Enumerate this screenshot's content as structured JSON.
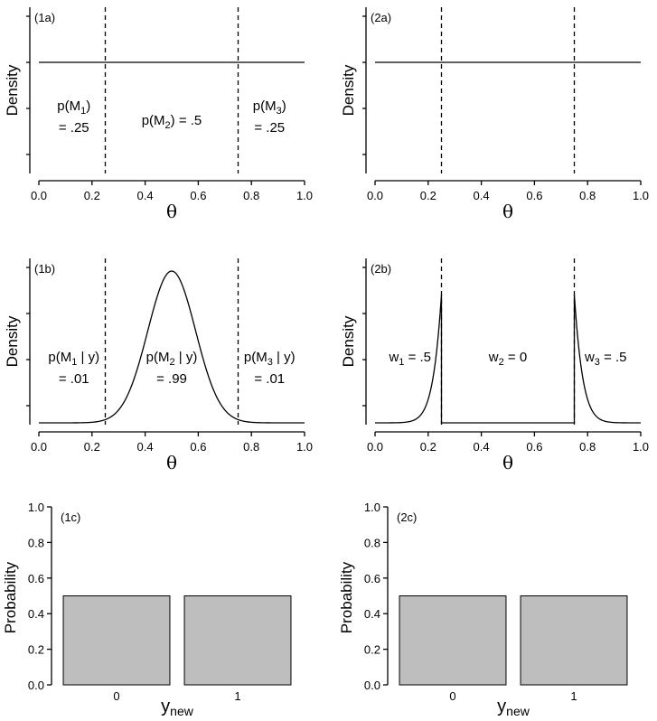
{
  "theta_label": "θ",
  "density_label": "Density",
  "probability_label": "Probability",
  "ynew_label": "y",
  "ynew_sub": "new",
  "theta_ticks": [
    "0.0",
    "0.2",
    "0.4",
    "0.6",
    "0.8",
    "1.0"
  ],
  "prob_ticks": [
    "0.0",
    "0.2",
    "0.4",
    "0.6",
    "0.8",
    "1.0"
  ],
  "chart_data": [
    {
      "id": "1a",
      "label": "(1a)",
      "type": "line",
      "xlim": [
        0,
        1
      ],
      "boundaries": [
        0.25,
        0.75
      ],
      "curve": "uniform",
      "annotations": [
        {
          "pos": "left",
          "line1": "p(M",
          "sub": "1",
          "line1b": ")",
          "line2": "= .25"
        },
        {
          "pos": "middle",
          "line1": "p(M",
          "sub": "2",
          "line1b": ")  = .5",
          "line2": ""
        },
        {
          "pos": "right",
          "line1": "p(M",
          "sub": "3",
          "line1b": ")",
          "line2": "= .25"
        }
      ]
    },
    {
      "id": "2a",
      "label": "(2a)",
      "type": "line",
      "xlim": [
        0,
        1
      ],
      "boundaries": [
        0.25,
        0.75
      ],
      "curve": "uniform",
      "annotations": []
    },
    {
      "id": "1b",
      "label": "(1b)",
      "type": "line",
      "xlim": [
        0,
        1
      ],
      "boundaries": [
        0.25,
        0.75
      ],
      "curve": "normal",
      "mean": 0.5,
      "sd": 0.09,
      "annotations": [
        {
          "pos": "left",
          "line1": "p(M",
          "sub": "1",
          "line1b": " | y)",
          "line2": "= .01"
        },
        {
          "pos": "middle",
          "line1": "p(M",
          "sub": "2",
          "line1b": " | y)",
          "line2": "= .99"
        },
        {
          "pos": "right",
          "line1": "p(M",
          "sub": "3",
          "line1b": " | y)",
          "line2": "= .01"
        }
      ]
    },
    {
      "id": "2b",
      "label": "(2b)",
      "type": "line",
      "xlim": [
        0,
        1
      ],
      "boundaries": [
        0.25,
        0.75
      ],
      "curve": "truncated-tails",
      "mean": 0.5,
      "sd": 0.09,
      "annotations": [
        {
          "pos": "left",
          "line1": "w",
          "sub": "1",
          "line1b": " = .5",
          "line2": ""
        },
        {
          "pos": "middle",
          "line1": "w",
          "sub": "2",
          "line1b": " = 0",
          "line2": ""
        },
        {
          "pos": "right",
          "line1": "w",
          "sub": "3",
          "line1b": " = .5",
          "line2": ""
        }
      ]
    },
    {
      "id": "1c",
      "label": "(1c)",
      "type": "bar",
      "categories": [
        "0",
        "1"
      ],
      "values": [
        0.5,
        0.5
      ],
      "ylim": [
        0,
        1
      ],
      "ylabel": "Probability"
    },
    {
      "id": "2c",
      "label": "(2c)",
      "type": "bar",
      "categories": [
        "0",
        "1"
      ],
      "values": [
        0.5,
        0.5
      ],
      "ylim": [
        0,
        1
      ],
      "ylabel": "Probability"
    }
  ]
}
